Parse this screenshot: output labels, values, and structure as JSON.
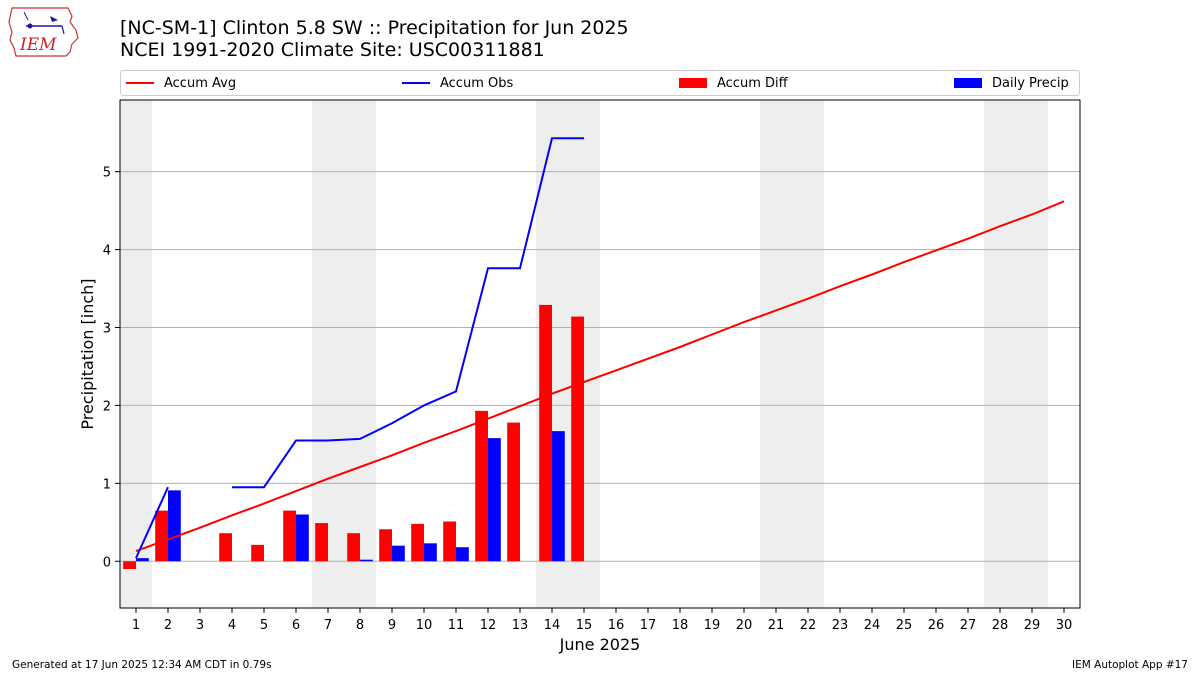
{
  "header": {
    "title_line1": "[NC-SM-1] Clinton 5.8 SW :: Precipitation for Jun 2025",
    "title_line2": "NCEI 1991-2020 Climate Site: USC00311881",
    "logo_text": "IEM"
  },
  "footer": {
    "generated": "Generated at 17 Jun 2025 12:34 AM CDT in 0.79s",
    "app": "IEM Autoplot App #17"
  },
  "chart_data": {
    "type": "bar",
    "xlabel": "June 2025",
    "ylabel": "Precipitation [inch]",
    "xlim": [
      0.5,
      30.5
    ],
    "ylim": [
      -0.6,
      5.92
    ],
    "x_ticks": [
      1,
      2,
      3,
      4,
      5,
      6,
      7,
      8,
      9,
      10,
      11,
      12,
      13,
      14,
      15,
      16,
      17,
      18,
      19,
      20,
      21,
      22,
      23,
      24,
      25,
      26,
      27,
      28,
      29,
      30
    ],
    "y_ticks": [
      0,
      1,
      2,
      3,
      4,
      5
    ],
    "grid": "horizontal",
    "legend_placement": "top",
    "weekend_shading": [
      [
        0.5,
        1.5
      ],
      [
        6.5,
        8.5
      ],
      [
        13.5,
        15.5
      ],
      [
        20.5,
        22.5
      ],
      [
        27.5,
        29.5
      ]
    ],
    "series": [
      {
        "name": "Accum Avg",
        "kind": "line",
        "color": "#ff0000",
        "x": [
          1,
          2,
          3,
          4,
          5,
          6,
          7,
          8,
          9,
          10,
          11,
          12,
          13,
          14,
          15,
          16,
          17,
          18,
          19,
          20,
          21,
          22,
          23,
          24,
          25,
          26,
          27,
          28,
          29,
          30
        ],
        "values": [
          0.13,
          0.28,
          0.43,
          0.59,
          0.74,
          0.9,
          1.06,
          1.21,
          1.36,
          1.52,
          1.67,
          1.83,
          1.99,
          2.15,
          2.3,
          2.45,
          2.6,
          2.75,
          2.91,
          3.07,
          3.22,
          3.37,
          3.53,
          3.68,
          3.84,
          3.99,
          4.14,
          4.3,
          4.45,
          4.62
        ]
      },
      {
        "name": "Accum Obs",
        "kind": "line",
        "color": "#0000ff",
        "x": [
          1,
          2,
          3,
          4,
          5,
          6,
          7,
          8,
          9,
          10,
          11,
          12,
          13,
          14,
          15
        ],
        "values": [
          0.04,
          0.95,
          null,
          0.95,
          0.95,
          1.55,
          1.55,
          1.57,
          1.77,
          2.0,
          2.18,
          3.76,
          3.76,
          5.43,
          5.43
        ]
      },
      {
        "name": "Accum Diff",
        "kind": "bar",
        "color": "#ff0000",
        "x": [
          1,
          2,
          3,
          4,
          5,
          6,
          7,
          8,
          9,
          10,
          11,
          12,
          13,
          14,
          15
        ],
        "values": [
          -0.1,
          0.65,
          0,
          0.36,
          0.21,
          0.65,
          0.49,
          0.36,
          0.41,
          0.48,
          0.51,
          1.93,
          1.78,
          3.29,
          3.14
        ]
      },
      {
        "name": "Daily Precip",
        "kind": "bar",
        "color": "#0000ff",
        "x": [
          1,
          2,
          3,
          4,
          5,
          6,
          7,
          8,
          9,
          10,
          11,
          12,
          13,
          14,
          15
        ],
        "values": [
          0.04,
          0.91,
          0,
          0,
          0,
          0.6,
          0,
          0.02,
          0.2,
          0.23,
          0.18,
          1.58,
          0,
          1.67,
          0
        ]
      }
    ]
  }
}
